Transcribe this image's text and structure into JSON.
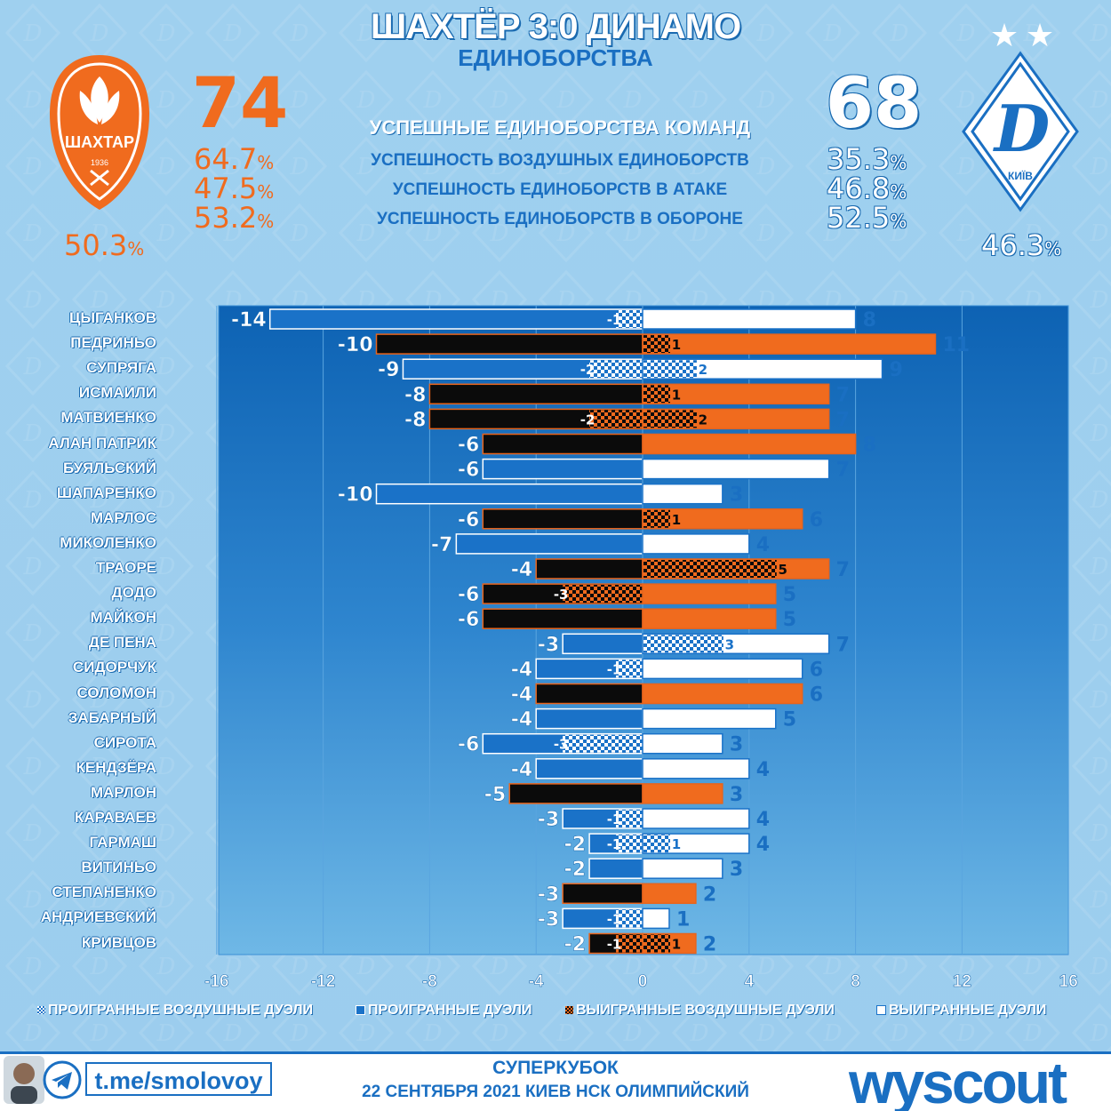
{
  "header": {
    "title": "ШАХТЁР 3:0 ДИНАМО",
    "subtitle": "ЕДИНОБОРСТВА"
  },
  "team_left": {
    "logo_text": "ШАХТАР",
    "logo_year": "1936",
    "total": "74",
    "overall_pct": "50.3",
    "pcts": [
      "64.7",
      "47.5",
      "53.2"
    ]
  },
  "team_right": {
    "logo_text": "КИЇВ",
    "total": "68",
    "overall_pct": "46.3",
    "pcts": [
      "35.3",
      "46.8",
      "52.5"
    ]
  },
  "pct_sign": "%",
  "metrics": [
    "УСПЕШНЫЕ ЕДИНОБОРСТВА КОМАНД",
    "УСПЕШНОСТЬ ВОЗДУШНЫХ ЕДИНОБОРСТВ",
    "УСПЕШНОСТЬ ЕДИНОБОРСТВ В АТАКЕ",
    "УСПЕШНОСТЬ ЕДИНОБОРСТВ В ОБОРОНЕ"
  ],
  "chart_data": {
    "type": "bar",
    "orientation": "horizontal-diverging",
    "xlim": [
      -16,
      16
    ],
    "xticks": [
      "-16",
      "-12",
      "-8",
      "-4",
      "0",
      "4",
      "8",
      "12",
      "16"
    ],
    "grid": true,
    "legend": [
      "ПРОИГРАННЫЕ ВОЗДУШНЫЕ ДУЭЛИ",
      "ПРОИГРАННЫЕ ДУЭЛИ",
      "ВЫИГРАННЫЕ ВОЗДУШНЫЕ ДУЭЛИ",
      "ВЫИГРАННЫЕ ДУЭЛИ"
    ],
    "legend_placement": "bottom",
    "colors": {
      "shakhtar_lost": "#0b0b0b",
      "shakhtar_won": "#f06b1e",
      "dynamo_lost": "#1a72c8",
      "dynamo_won": "#ffffff",
      "outline": "#e8641c"
    },
    "players": [
      {
        "name": "ЦЫГАНКОВ",
        "team": "dynamo",
        "lost": -14,
        "lost_aerial": -1,
        "won": 8,
        "won_aerial": 0
      },
      {
        "name": "ПЕДРИНЬО",
        "team": "shakhtar",
        "lost": -10,
        "lost_aerial": 0,
        "won": 11,
        "won_aerial": 1
      },
      {
        "name": "СУПРЯГА",
        "team": "dynamo",
        "lost": -9,
        "lost_aerial": -2,
        "won": 9,
        "won_aerial": 2
      },
      {
        "name": "ИСМАИЛИ",
        "team": "shakhtar",
        "lost": -8,
        "lost_aerial": 0,
        "won": 7,
        "won_aerial": 1
      },
      {
        "name": "МАТВИЕНКО",
        "team": "shakhtar",
        "lost": -8,
        "lost_aerial": -2,
        "won": 7,
        "won_aerial": 2
      },
      {
        "name": "АЛАН ПАТРИК",
        "team": "shakhtar",
        "lost": -6,
        "lost_aerial": 0,
        "won": 8,
        "won_aerial": 0
      },
      {
        "name": "БУЯЛЬСКИЙ",
        "team": "dynamo",
        "lost": -6,
        "lost_aerial": 0,
        "won": 7,
        "won_aerial": 0
      },
      {
        "name": "ШАПАРЕНКО",
        "team": "dynamo",
        "lost": -10,
        "lost_aerial": 0,
        "won": 3,
        "won_aerial": 0
      },
      {
        "name": "МАРЛОС",
        "team": "shakhtar",
        "lost": -6,
        "lost_aerial": 0,
        "won": 6,
        "won_aerial": 1
      },
      {
        "name": "МИКОЛЕНКО",
        "team": "dynamo",
        "lost": -7,
        "lost_aerial": 0,
        "won": 4,
        "won_aerial": 0
      },
      {
        "name": "ТРАОРЕ",
        "team": "shakhtar",
        "lost": -4,
        "lost_aerial": 0,
        "won": 7,
        "won_aerial": 5
      },
      {
        "name": "ДОДО",
        "team": "shakhtar",
        "lost": -6,
        "lost_aerial": -3,
        "won": 5,
        "won_aerial": 0
      },
      {
        "name": "МАЙКОН",
        "team": "shakhtar",
        "lost": -6,
        "lost_aerial": 0,
        "won": 5,
        "won_aerial": 0
      },
      {
        "name": "ДЕ ПЕНА",
        "team": "dynamo",
        "lost": -3,
        "lost_aerial": 0,
        "won": 7,
        "won_aerial": 3
      },
      {
        "name": "СИДОРЧУК",
        "team": "dynamo",
        "lost": -4,
        "lost_aerial": -1,
        "won": 6,
        "won_aerial": 0
      },
      {
        "name": "СОЛОМОН",
        "team": "shakhtar",
        "lost": -4,
        "lost_aerial": 0,
        "won": 6,
        "won_aerial": 0
      },
      {
        "name": "ЗАБАРНЫЙ",
        "team": "dynamo",
        "lost": -4,
        "lost_aerial": 0,
        "won": 5,
        "won_aerial": 0
      },
      {
        "name": "СИРОТА",
        "team": "dynamo",
        "lost": -6,
        "lost_aerial": -3,
        "won": 3,
        "won_aerial": 0
      },
      {
        "name": "КЕНДЗЁРА",
        "team": "dynamo",
        "lost": -4,
        "lost_aerial": 0,
        "won": 4,
        "won_aerial": 0
      },
      {
        "name": "МАРЛОН",
        "team": "shakhtar",
        "lost": -5,
        "lost_aerial": 0,
        "won": 3,
        "won_aerial": 0
      },
      {
        "name": "КАРАВАЕВ",
        "team": "dynamo",
        "lost": -3,
        "lost_aerial": -1,
        "won": 4,
        "won_aerial": 0
      },
      {
        "name": "ГАРМАШ",
        "team": "dynamo",
        "lost": -2,
        "lost_aerial": -1,
        "won": 4,
        "won_aerial": 1
      },
      {
        "name": "ВИТИНЬО",
        "team": "dynamo",
        "lost": -2,
        "lost_aerial": 0,
        "won": 3,
        "won_aerial": 0
      },
      {
        "name": "СТЕПАНЕНКО",
        "team": "shakhtar",
        "lost": -3,
        "lost_aerial": 0,
        "won": 2,
        "won_aerial": 0
      },
      {
        "name": "АНДРИЕВСКИЙ",
        "team": "dynamo",
        "lost": -3,
        "lost_aerial": -1,
        "won": 1,
        "won_aerial": 0
      },
      {
        "name": "КРИВЦОВ",
        "team": "shakhtar",
        "lost": -2,
        "lost_aerial": -1,
        "won": 2,
        "won_aerial": 1
      }
    ]
  },
  "footer": {
    "channel": "t.me/smolovoy",
    "competition": "СУПЕРКУБОК",
    "date_venue": "22 СЕНТЯБРЯ 2021 КИЕВ НСК ОЛИМПИЙСКИЙ",
    "brand": "wyscout"
  }
}
